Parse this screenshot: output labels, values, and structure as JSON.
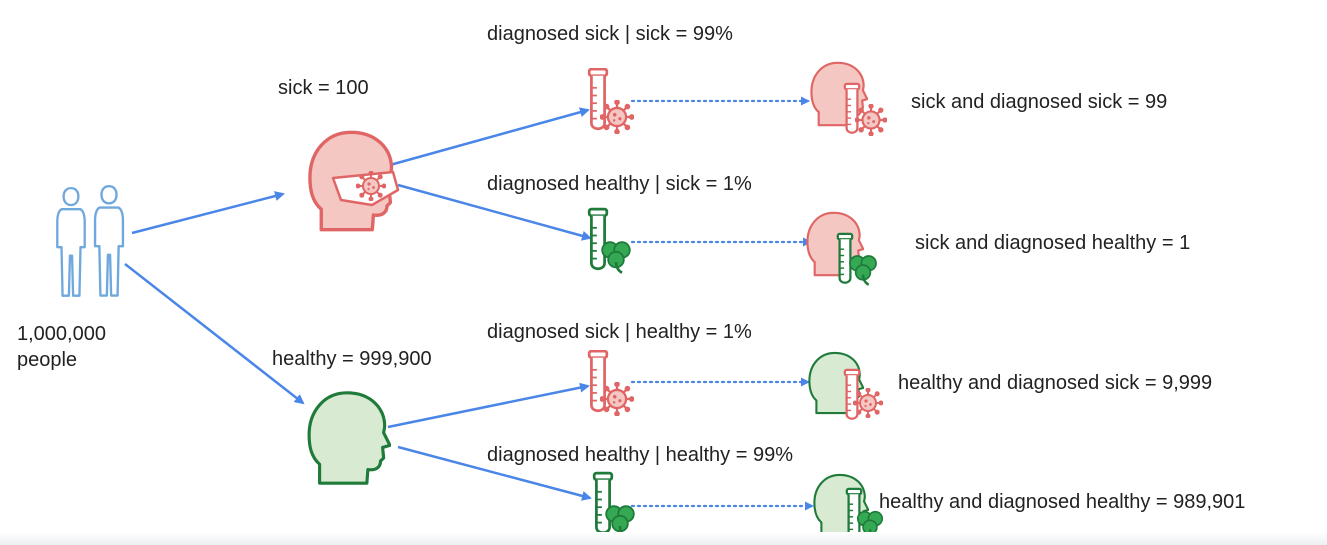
{
  "population": {
    "line1": "1,000,000",
    "line2": "people"
  },
  "groups": {
    "sick": {
      "label": "sick = 100"
    },
    "healthy": {
      "label": "healthy = 999,900"
    }
  },
  "branches": [
    {
      "condition": "diagnosed sick | sick = 99%",
      "outcome": "sick and diagnosed sick = 99"
    },
    {
      "condition": "diagnosed healthy | sick = 1%",
      "outcome": "sick and diagnosed healthy = 1"
    },
    {
      "condition": "diagnosed sick | healthy = 1%",
      "outcome": "healthy and diagnosed sick = 9,999"
    },
    {
      "condition": "diagnosed healthy | healthy = 99%",
      "outcome": "healthy and diagnosed healthy = 989,901"
    }
  ],
  "colors": {
    "arrow": "#4a86e8",
    "sick_stroke": "#e06666",
    "sick_fill": "#f4c7c3",
    "healthy_stroke": "#1e7b3a",
    "healthy_fill": "#d9ead3",
    "people": "#6fa8dc"
  }
}
